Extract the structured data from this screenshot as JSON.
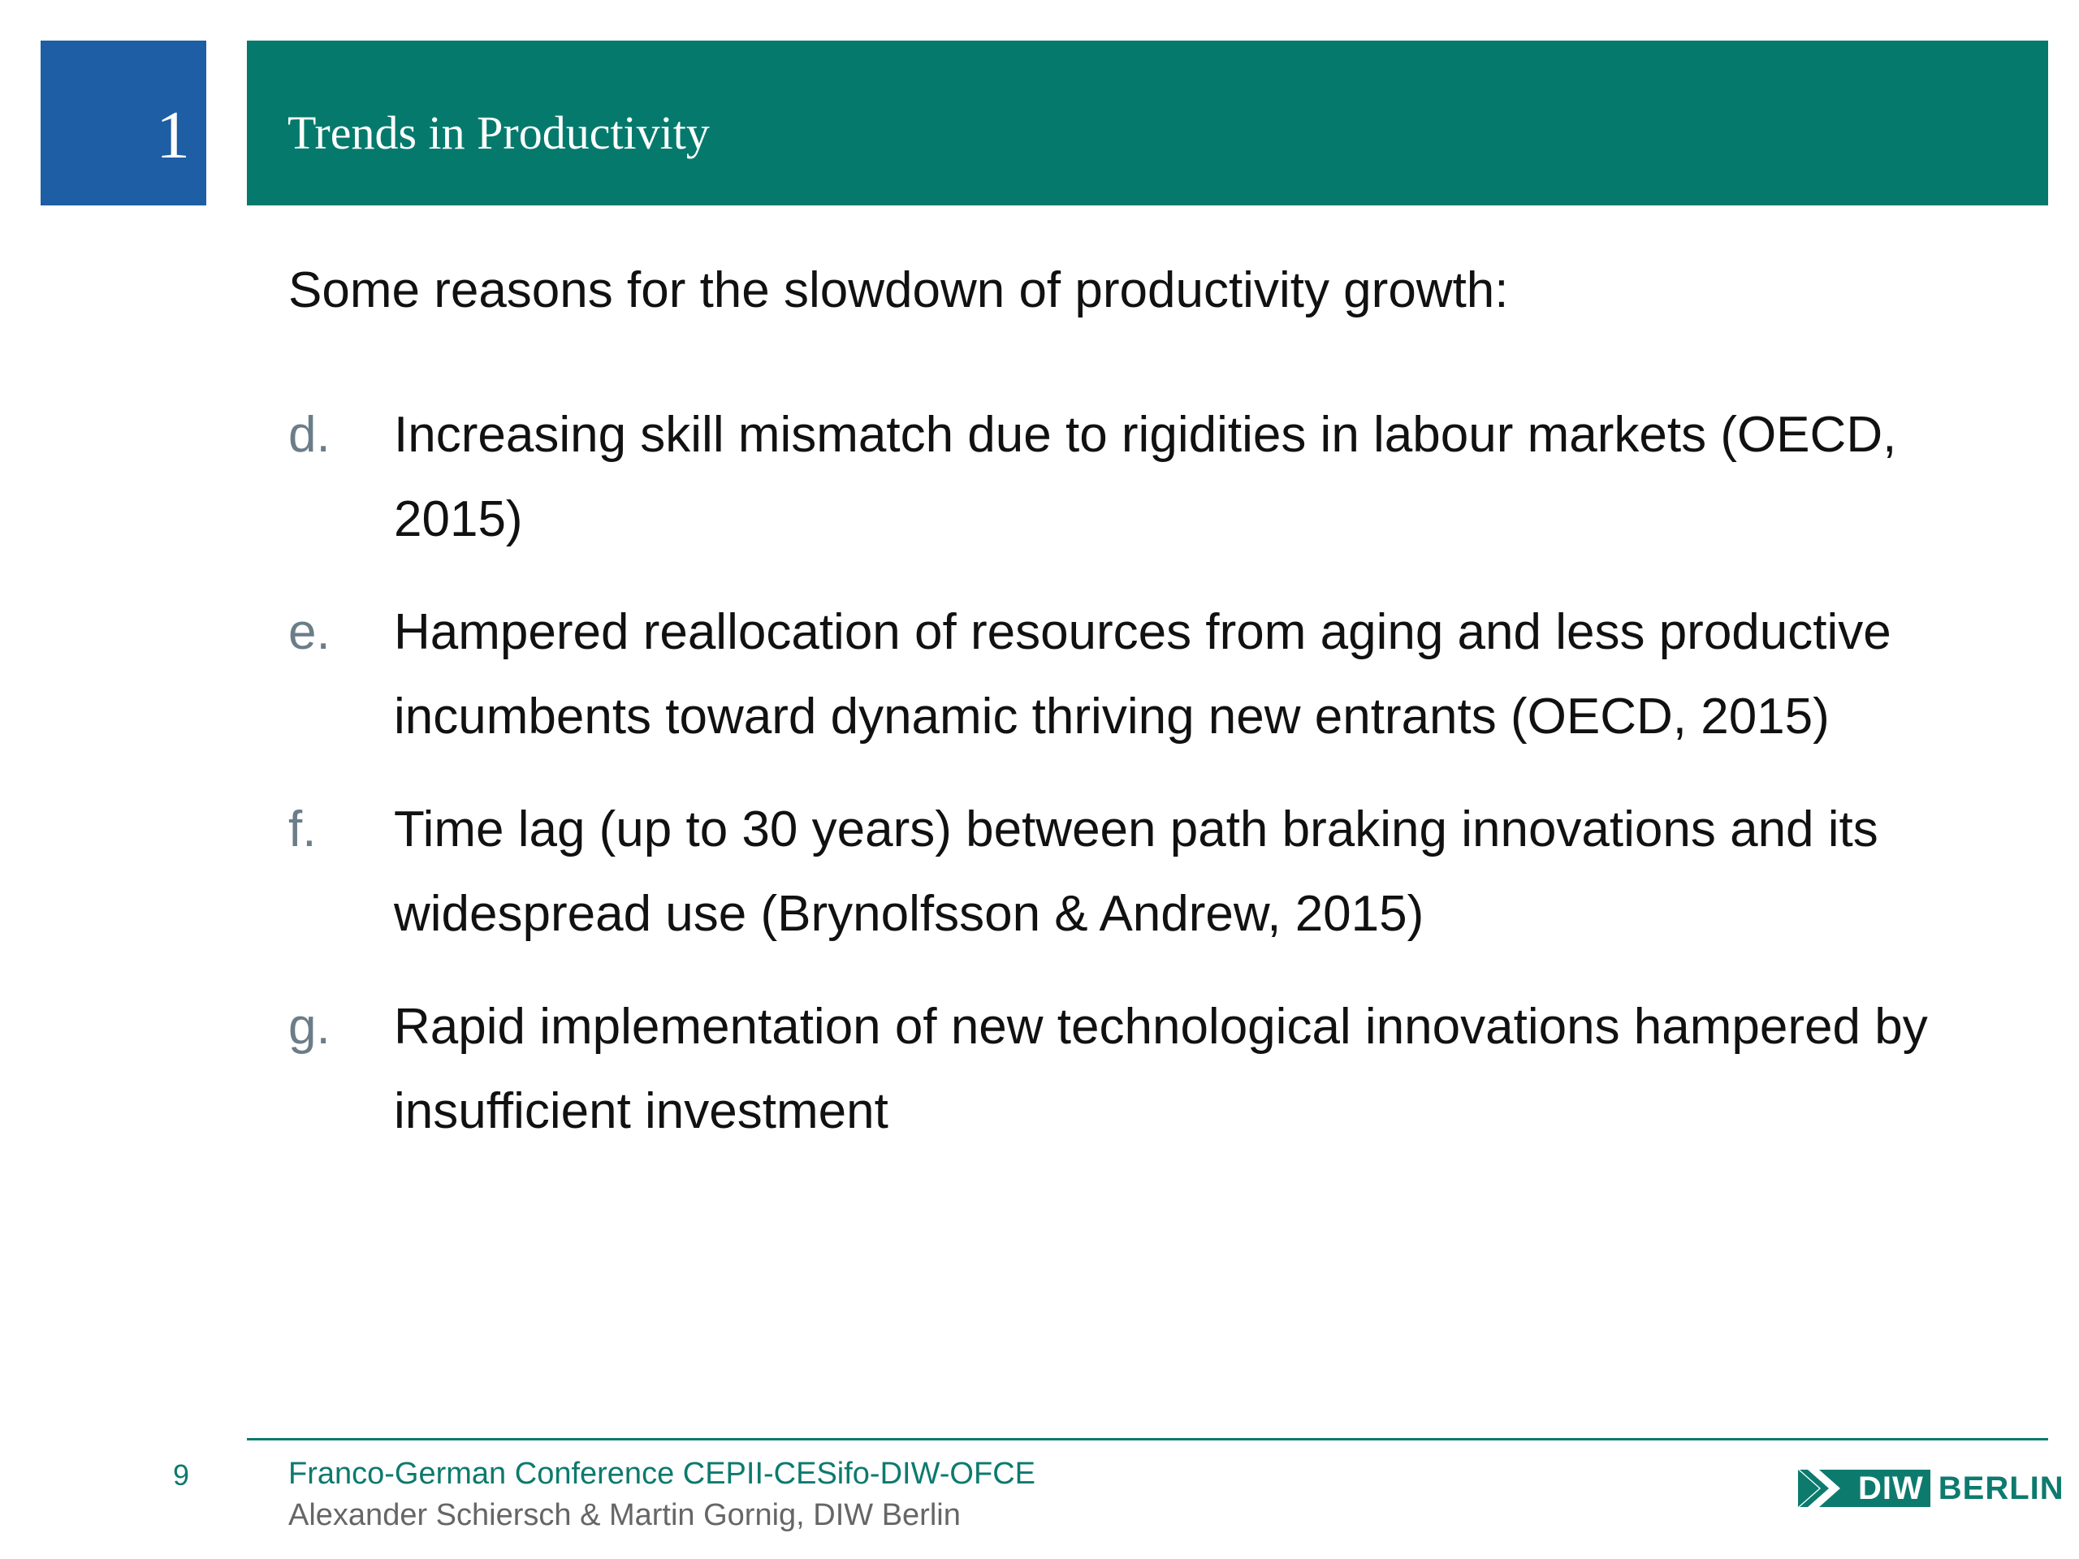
{
  "header": {
    "section_number": "1",
    "title": "Trends in Productivity"
  },
  "content": {
    "intro": "Some reasons for the slowdown of productivity growth:",
    "items": [
      {
        "marker": "d.",
        "text": "Increasing skill mismatch due to rigidities in labour markets (OECD, 2015)"
      },
      {
        "marker": "e.",
        "text": "Hampered reallocation of resources from aging and less productive incumbents toward dynamic thriving new entrants (OECD, 2015)"
      },
      {
        "marker": "f.",
        "text": "Time lag (up to 30 years) between path braking innovations and its widespread use (Brynolfsson & Andrew, 2015)"
      },
      {
        "marker": "g.",
        "text": "Rapid implementation of new technological innovations hampered by insufficient investment"
      }
    ]
  },
  "footer": {
    "page_number": "9",
    "conference": "Franco-German Conference CEPII-CESifo-DIW-OFCE",
    "authors": "Alexander Schiersch & Martin Gornig, DIW Berlin"
  },
  "logo": {
    "diw": "DIW",
    "berlin": "BERLIN",
    "icon": "diw-logo-mark-icon"
  },
  "colors": {
    "section_box": "#1d5ea4",
    "title_bar": "#057a6c",
    "accent": "#0d7a6e",
    "marker": "#6b7d88"
  }
}
